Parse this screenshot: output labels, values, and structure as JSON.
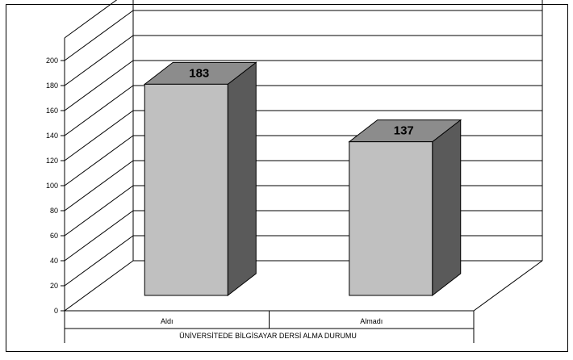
{
  "chart_data": {
    "type": "bar",
    "title": "",
    "xlabel": "ÜNİVERSİTEDE BİLGİSAYAR DERSİ ALMA DURUMU",
    "ylabel": "",
    "categories": [
      "Aldı",
      "Almadı"
    ],
    "values": [
      183,
      137
    ],
    "data_labels": [
      "183",
      "137"
    ],
    "ylim": [
      0,
      200
    ],
    "yticks": [
      "0",
      "20",
      "40",
      "60",
      "80",
      "100",
      "120",
      "140",
      "160",
      "180",
      "200"
    ],
    "grid": true,
    "legend": "none",
    "style": "3d-column",
    "colors": {
      "bar_front": "#c0c0c0",
      "bar_top": "#8c8c8c",
      "bar_side": "#5a5a5a",
      "lines": "#000000"
    }
  }
}
